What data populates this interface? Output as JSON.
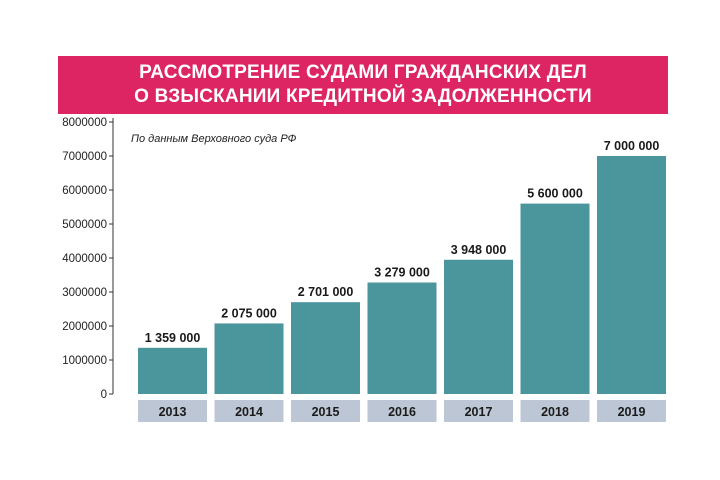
{
  "title_lines": [
    "РАССМОТРЕНИЕ СУДАМИ ГРАЖДАНСКИХ ДЕЛ",
    "О ВЗЫСКАНИИ КРЕДИТНОЙ ЗАДОЛЖЕННОСТИ"
  ],
  "source_note": "По данным Верховного суда РФ",
  "colors": {
    "banner": "#dd2564",
    "bar": "#4b959c",
    "xlabel_box": "#bcc6d4",
    "axis": "#333333"
  },
  "chart_data": {
    "type": "bar",
    "title": "РАССМОТРЕНИЕ СУДАМИ ГРАЖДАНСКИХ ДЕЛ О ВЗЫСКАНИИ КРЕДИТНОЙ ЗАДОЛЖЕННОСТИ",
    "categories": [
      "2013",
      "2014",
      "2015",
      "2016",
      "2017",
      "2018",
      "2019"
    ],
    "values": [
      1359000,
      2075000,
      2701000,
      3279000,
      3948000,
      5600000,
      7000000
    ],
    "value_labels": [
      "1 359 000",
      "2 075 000",
      "2 701 000",
      "3 279 000",
      "3 948 000",
      "5 600 000",
      "7 000 000"
    ],
    "y_ticks": [
      "0",
      "1000000",
      "2000000",
      "3000000",
      "4000000",
      "5000000",
      "6000000",
      "7000000",
      "8000000"
    ],
    "ylim": [
      0,
      8000000
    ],
    "xlabel": "",
    "ylabel": "",
    "grid": false,
    "legend": "none"
  }
}
